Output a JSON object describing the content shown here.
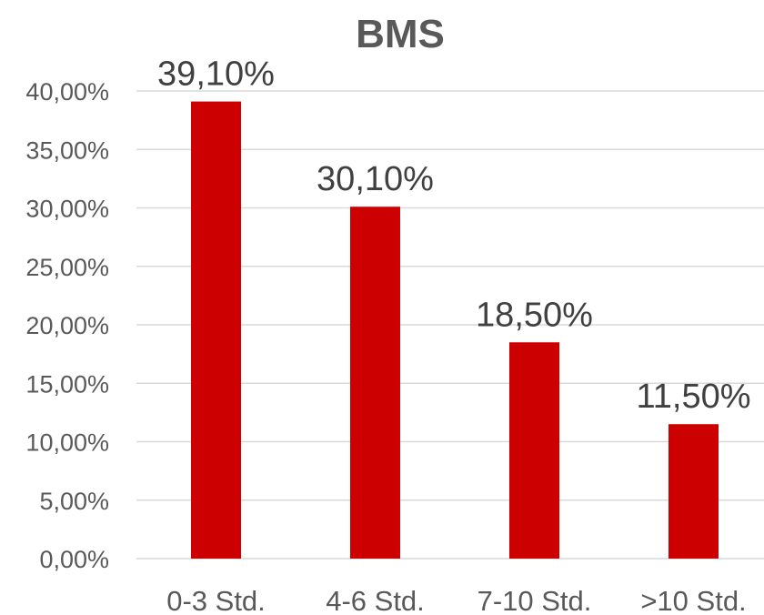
{
  "chart_data": {
    "type": "bar",
    "title": "BMS",
    "categories": [
      "0-3 Std.",
      "4-6 Std.",
      "7-10 Std.",
      ">10 Std."
    ],
    "values": [
      39.1,
      30.1,
      18.5,
      11.5
    ],
    "data_labels": [
      "39,10%",
      "30,10%",
      "18,50%",
      "11,50%"
    ],
    "yticks": [
      0,
      5,
      10,
      15,
      20,
      25,
      30,
      35,
      40
    ],
    "ytick_labels": [
      "0,00%",
      "5,00%",
      "10,00%",
      "15,00%",
      "20,00%",
      "25,00%",
      "30,00%",
      "35,00%",
      "40,00%"
    ],
    "xlabel": "",
    "ylabel": "",
    "ylim": [
      0,
      40
    ],
    "grid": true,
    "legend": "none",
    "bar_color": "#cc0000",
    "grid_color": "#d9d9d9",
    "text_color": "#595959"
  }
}
